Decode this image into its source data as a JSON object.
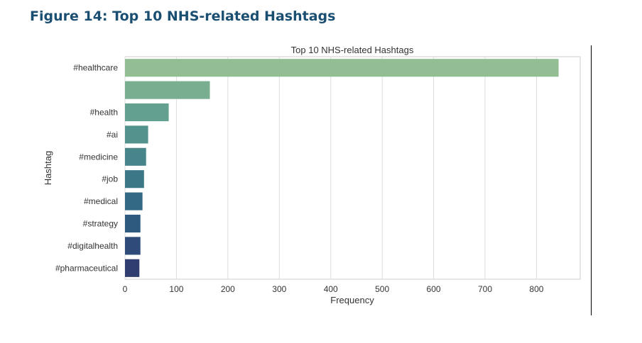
{
  "figure": {
    "heading": "Figure 14: Top 10 NHS-related Hashtags"
  },
  "chart_data": {
    "type": "bar",
    "orientation": "horizontal",
    "title": "Top 10 NHS-related Hashtags",
    "xlabel": "Frequency",
    "ylabel": "Hashtag",
    "categories": [
      "#healthcare",
      "",
      "#health",
      "#ai",
      "#medicine",
      "#job",
      "#medical",
      "#strategy",
      "#digitalhealth",
      "#pharmaceutical"
    ],
    "values": [
      843,
      165,
      85,
      45,
      41,
      37,
      34,
      30,
      30,
      28
    ],
    "xlim": [
      0,
      885
    ],
    "xticks": [
      0,
      100,
      200,
      300,
      400,
      500,
      600,
      700,
      800
    ],
    "grid": true,
    "colors": [
      "#93be94",
      "#7aae91",
      "#64a08f",
      "#52938d",
      "#47858b",
      "#3c7788",
      "#336984",
      "#2f5a80",
      "#2e4b7a",
      "#2f3d70"
    ]
  }
}
